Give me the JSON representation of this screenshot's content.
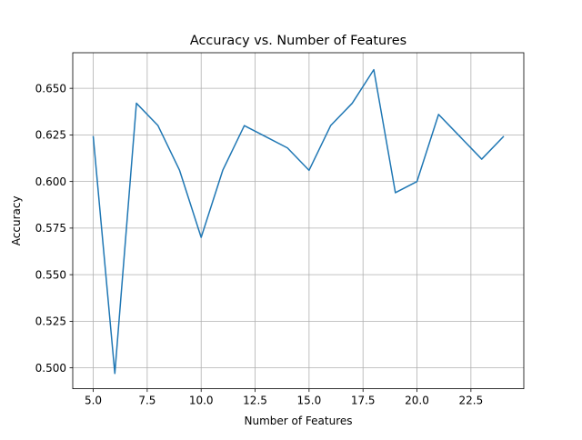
{
  "chart_data": {
    "type": "line",
    "title": "Accuracy vs. Number of Features",
    "xlabel": "Number of Features",
    "ylabel": "Accuracy",
    "xlim": [
      4.05,
      24.95
    ],
    "ylim": [
      0.4888,
      0.6691
    ],
    "xticks": [
      5.0,
      7.5,
      10.0,
      12.5,
      15.0,
      17.5,
      20.0,
      22.5
    ],
    "xtick_labels": [
      "5.0",
      "7.5",
      "10.0",
      "12.5",
      "15.0",
      "17.5",
      "20.0",
      "22.5"
    ],
    "yticks": [
      0.5,
      0.525,
      0.55,
      0.575,
      0.6,
      0.625,
      0.65
    ],
    "ytick_labels": [
      "0.500",
      "0.525",
      "0.550",
      "0.575",
      "0.600",
      "0.625",
      "0.650"
    ],
    "grid": true,
    "line_color": "#1f77b4",
    "grid_color": "#b0b0b0",
    "series": [
      {
        "x": [
          5,
          6,
          7,
          8,
          9,
          10,
          11,
          12,
          13,
          14,
          15,
          16,
          17,
          18,
          19,
          20,
          21,
          22,
          23,
          24
        ],
        "values": [
          0.624,
          0.497,
          0.642,
          0.63,
          0.606,
          0.57,
          0.606,
          0.63,
          0.624,
          0.618,
          0.606,
          0.63,
          0.642,
          0.66,
          0.594,
          0.6,
          0.636,
          0.624,
          0.612,
          0.624
        ]
      }
    ]
  }
}
